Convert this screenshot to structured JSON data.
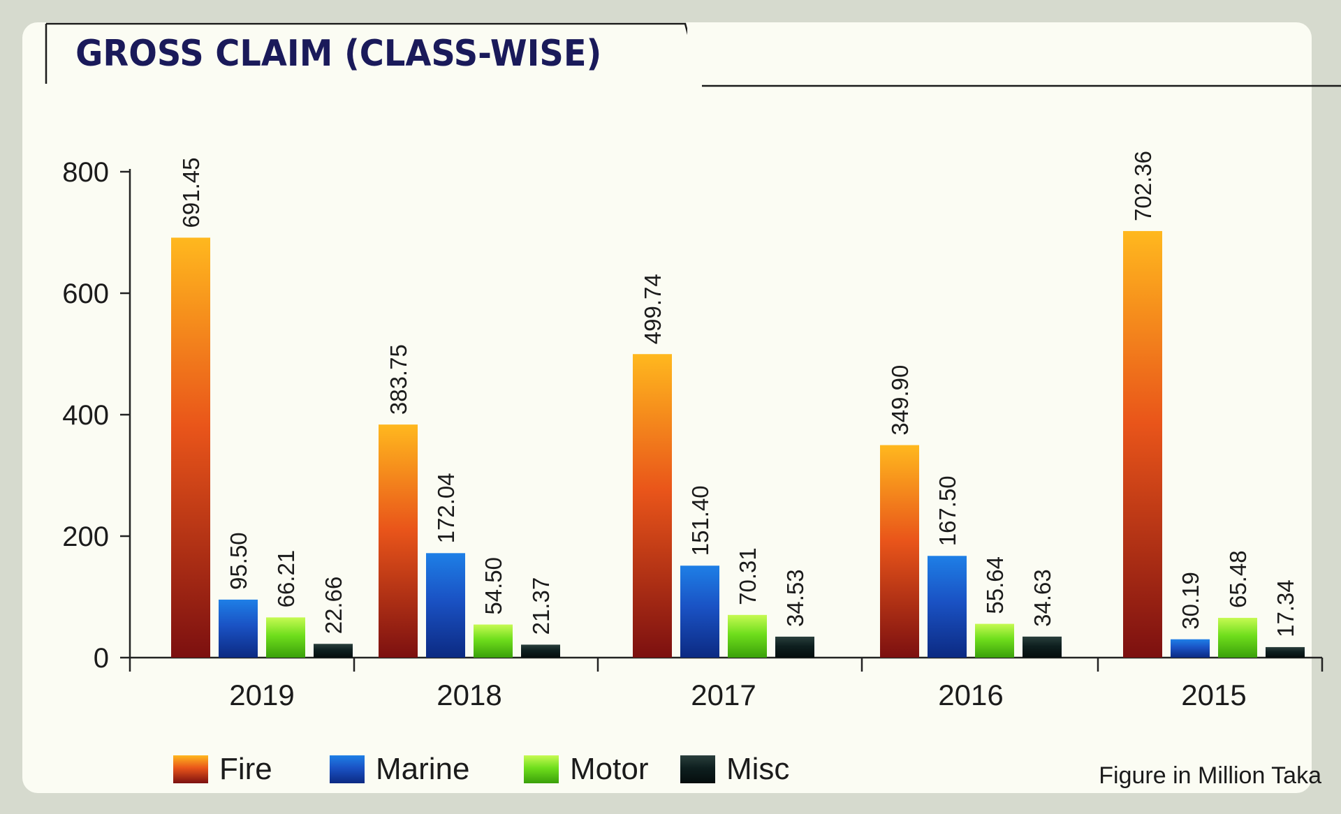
{
  "title": "GROSS CLAIM (CLASS-WISE)",
  "note": "Figure in Million Taka",
  "chart_data": {
    "type": "bar",
    "title": "GROSS CLAIM (CLASS-WISE)",
    "categories": [
      "2019",
      "2018",
      "2017",
      "2016",
      "2015"
    ],
    "series": [
      {
        "name": "Fire",
        "values": [
          691.45,
          383.75,
          499.74,
          349.9,
          702.36
        ],
        "labels": [
          "691.45",
          "383.75",
          "499.74",
          "349.90",
          "702.36"
        ]
      },
      {
        "name": "Marine",
        "values": [
          95.5,
          172.04,
          151.4,
          167.5,
          30.19
        ],
        "labels": [
          "95.50",
          "172.04",
          "151.40",
          "167.50",
          "30.19"
        ]
      },
      {
        "name": "Motor",
        "values": [
          66.21,
          54.5,
          70.31,
          55.64,
          65.48
        ],
        "labels": [
          "66.21",
          "54.50",
          "70.31",
          "55.64",
          "65.48"
        ]
      },
      {
        "name": "Misc",
        "values": [
          22.66,
          21.37,
          34.53,
          34.63,
          17.34
        ],
        "labels": [
          "22.66",
          "21.37",
          "34.53",
          "34.63",
          "17.34"
        ]
      }
    ],
    "ylim": [
      0,
      800
    ],
    "yticks": [
      0,
      200,
      400,
      600,
      800
    ],
    "xlabel": "",
    "ylabel": "",
    "legend": "bottom",
    "grid": false
  },
  "colors": {
    "Fire": [
      "#ffb81e",
      "#e9551a",
      "#7c1010"
    ],
    "Marine": [
      "#1e7fe6",
      "#1a52c4",
      "#0c2a82"
    ],
    "Motor": [
      "#c6fa52",
      "#6fde1c",
      "#3aa00a"
    ],
    "Misc": [
      "#2a3f3c",
      "#0e1f1f",
      "#050d0d"
    ],
    "title": "#1a1a5a"
  }
}
